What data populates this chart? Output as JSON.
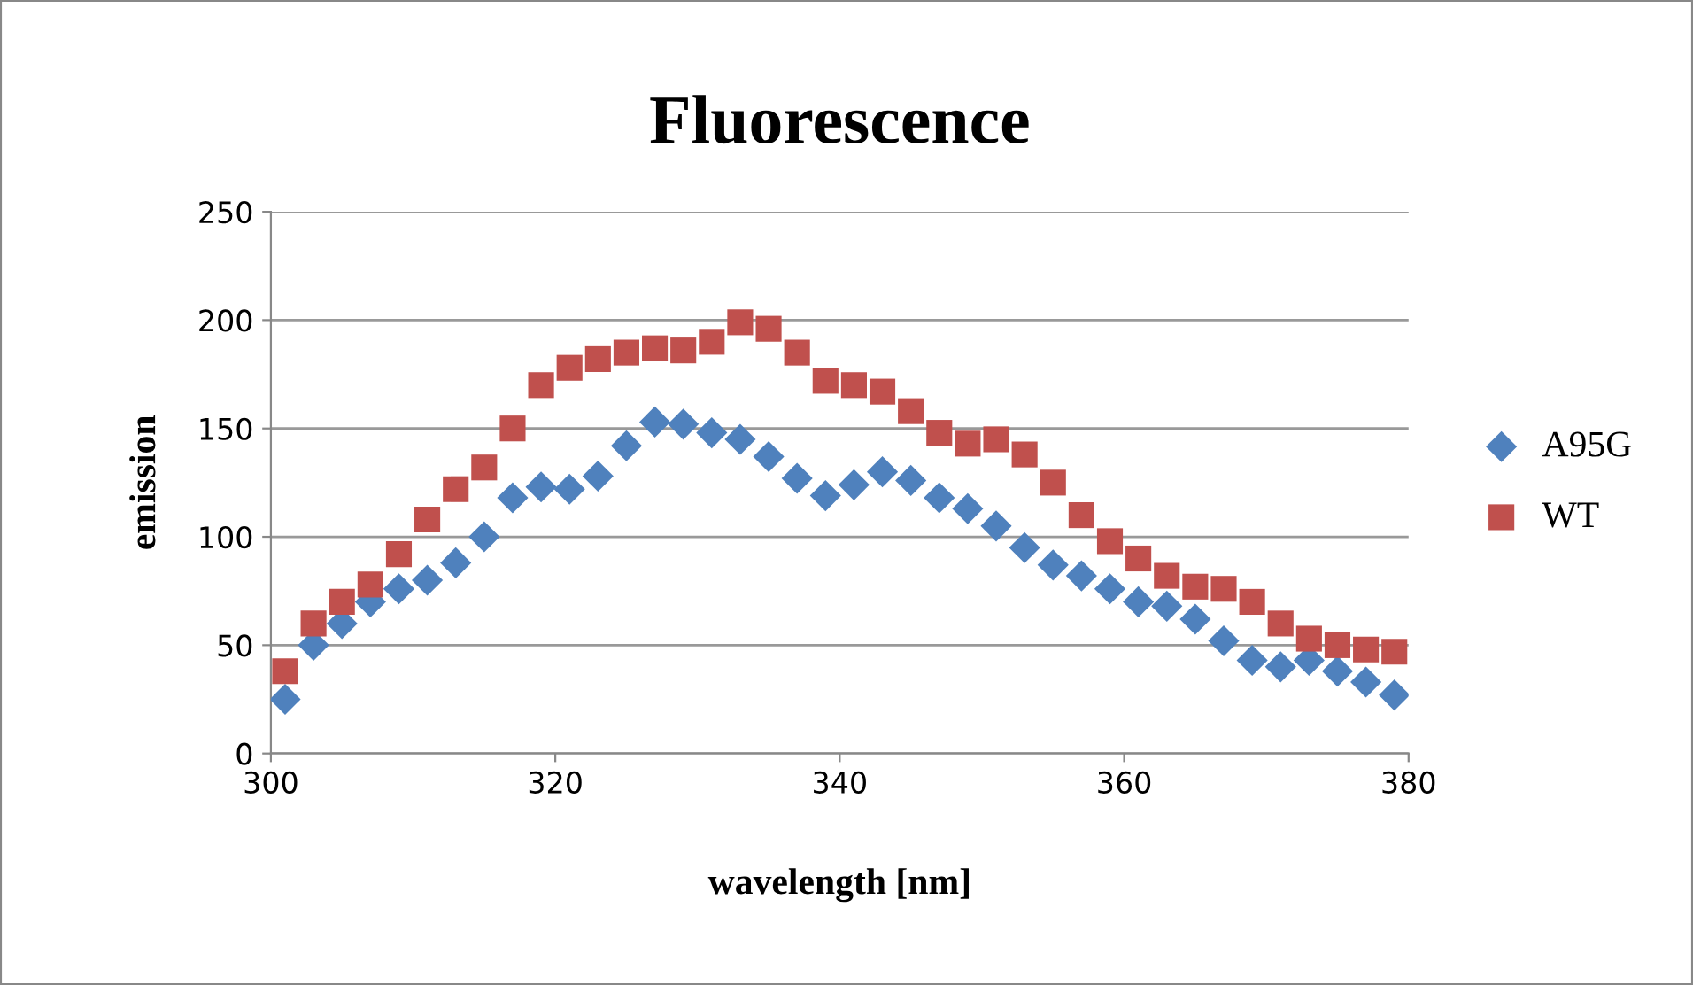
{
  "chart_data": {
    "type": "scatter",
    "title": "Fluorescence",
    "xlabel": "wavelength [nm]",
    "ylabel": "emission",
    "x": [
      301,
      303,
      305,
      307,
      309,
      311,
      313,
      315,
      317,
      319,
      321,
      323,
      325,
      327,
      329,
      331,
      333,
      335,
      337,
      339,
      341,
      343,
      345,
      347,
      349,
      351,
      353,
      355,
      357,
      359,
      361,
      363,
      365,
      367,
      369,
      371,
      373,
      375,
      377,
      379
    ],
    "series": [
      {
        "name": "A95G",
        "color": "#4f81bd",
        "marker": "diamond",
        "values": [
          25,
          50,
          60,
          70,
          76,
          80,
          88,
          100,
          118,
          123,
          122,
          128,
          142,
          153,
          152,
          148,
          145,
          137,
          127,
          119,
          124,
          130,
          126,
          118,
          113,
          105,
          95,
          87,
          82,
          76,
          70,
          68,
          62,
          52,
          43,
          40,
          43,
          38,
          33,
          27
        ]
      },
      {
        "name": "WT",
        "color": "#c0504d",
        "marker": "square",
        "values": [
          38,
          60,
          70,
          78,
          92,
          108,
          122,
          132,
          150,
          170,
          178,
          182,
          185,
          187,
          186,
          190,
          199,
          196,
          185,
          172,
          170,
          167,
          158,
          148,
          143,
          145,
          138,
          125,
          110,
          98,
          90,
          82,
          77,
          76,
          70,
          60,
          53,
          50,
          48,
          47
        ]
      }
    ],
    "xlim": [
      300,
      380
    ],
    "xticks": [
      300,
      320,
      340,
      360,
      380
    ],
    "ylim": [
      0,
      250
    ],
    "yticks": [
      0,
      50,
      100,
      150,
      200,
      250
    ],
    "grid": "y",
    "legend": "right"
  }
}
